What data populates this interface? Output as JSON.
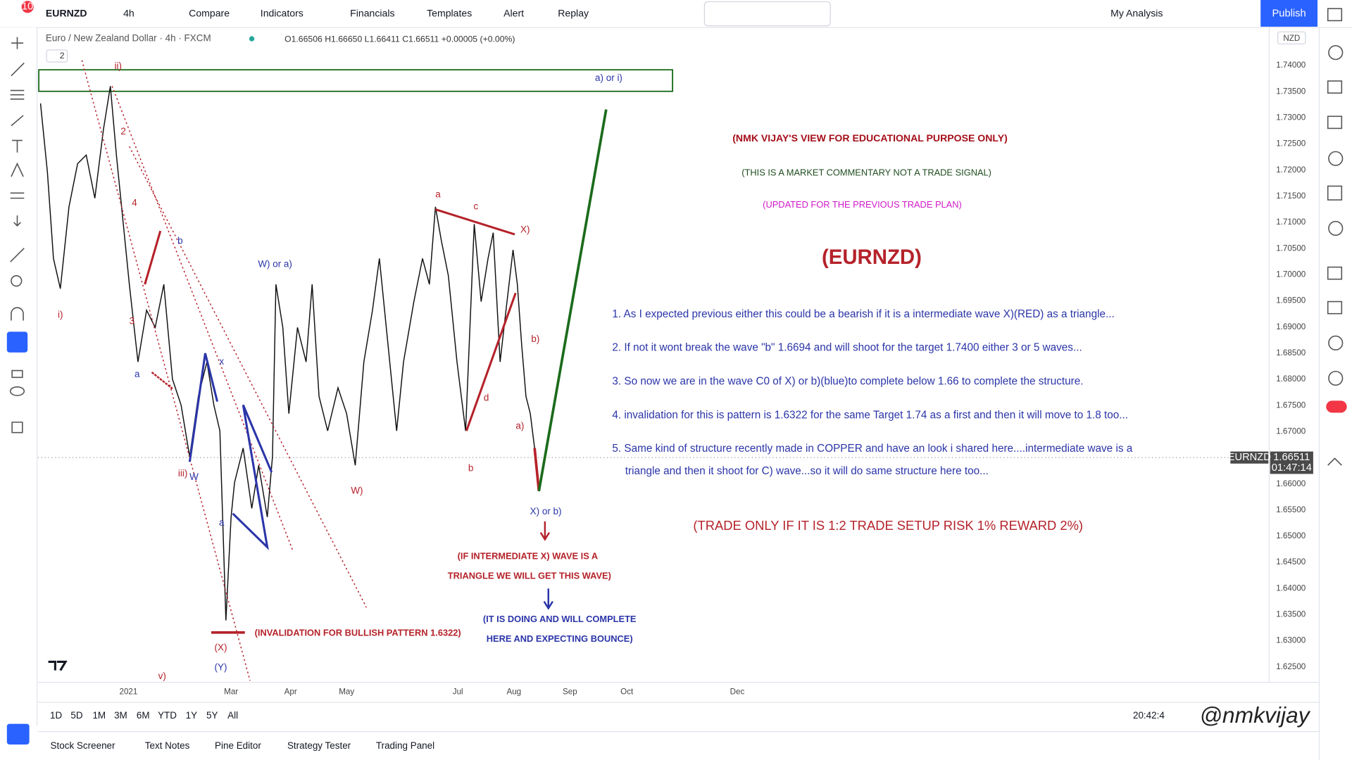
{
  "toolbar": {
    "badge": "10",
    "symbol": "EURNZD",
    "interval": "4h",
    "compare": "Compare",
    "indicators": "Indicators",
    "financials": "Financials",
    "templates": "Templates",
    "alert": "Alert",
    "replay": "Replay",
    "layout": "My Analysis",
    "publish": "Publish"
  },
  "legend": {
    "title": "Euro / New Zealand Dollar · 4h · FXCM",
    "ohlc": "O1.66506 H1.66650 L1.66411 C1.66511 +0.00005 (+0.00%)",
    "collapse": "2"
  },
  "waves": [
    "ii)",
    "2",
    "4",
    "3",
    "i)",
    "b",
    "a",
    "x",
    "iii)",
    "W",
    "a",
    "v)",
    "(X)",
    "(Y)",
    "W) or a)",
    "W)",
    "a",
    "c",
    "X)",
    "d",
    "b",
    "b)",
    "a)",
    "X) or b)",
    "a) or i)"
  ],
  "notes": [
    "(INVALIDATION FOR BULLISH PATTERN 1.6322)",
    "(IF INTERMEDIATE X) WAVE IS A",
    "TRIANGLE WE WILL GET THIS WAVE)",
    "(IT IS DOING AND WILL COMPLETE",
    "HERE AND EXPECTING BOUNCE)"
  ],
  "commentary": {
    "disclaimer": "(NMK VIJAY'S VIEW FOR EDUCATIONAL PURPOSE ONLY)",
    "signal_note": "(THIS IS A MARKET COMMENTARY NOT A TRADE SIGNAL)",
    "update_note": "(UPDATED FOR THE PREVIOUS TRADE PLAN)",
    "symbol": "(EURNZD)",
    "points": [
      "1. As I expected previous either this could be a bearish if it is a intermediate wave X)(RED) as a triangle...",
      "2. If not it wont break the wave \"b\" 1.6694 and will shoot for the target 1.7400 either 3 or 5 waves...",
      "3. So now we are in the wave C0 of X) or b)(blue)to complete below 1.66 to complete the structure.",
      "4. invalidation for this is pattern is 1.6322 for the same Target 1.74 as a first and then it will move to 1.8 too...",
      "5. Same kind of structure recently made in COPPER and have an look i shared here....intermediate wave is a",
      "triangle and then it shoot for C) wave...so it will do same structure here too..."
    ],
    "rule": "(TRADE ONLY IF IT IS 1:2 TRADE SETUP RISK 1% REWARD 2%)"
  },
  "price_axis": {
    "currency": "NZD",
    "symbol_tag": "EURNZD",
    "last_price": "1.66511",
    "countdown": "01:47:14",
    "ticks": [
      "1.74000",
      "1.73500",
      "1.73000",
      "1.72500",
      "1.72000",
      "1.71500",
      "1.71000",
      "1.70500",
      "1.70000",
      "1.69500",
      "1.69000",
      "1.68500",
      "1.68000",
      "1.67500",
      "1.67000",
      "1.66500",
      "1.66000",
      "1.65500",
      "1.65000",
      "1.64500",
      "1.64000",
      "1.63500",
      "1.63000",
      "1.62500"
    ]
  },
  "time_axis": [
    "2021",
    "Mar",
    "Apr",
    "May",
    "Jul",
    "Aug",
    "Sep",
    "Oct",
    "Dec"
  ],
  "ranges": [
    "1D",
    "5D",
    "1M",
    "3M",
    "6M",
    "YTD",
    "1Y",
    "5Y",
    "All"
  ],
  "clock": "20:42:4",
  "bottom_tabs": [
    "Stock Screener",
    "Text Notes",
    "Pine Editor",
    "Strategy Tester",
    "Trading Panel"
  ],
  "watermark": "@nmkvijay"
}
